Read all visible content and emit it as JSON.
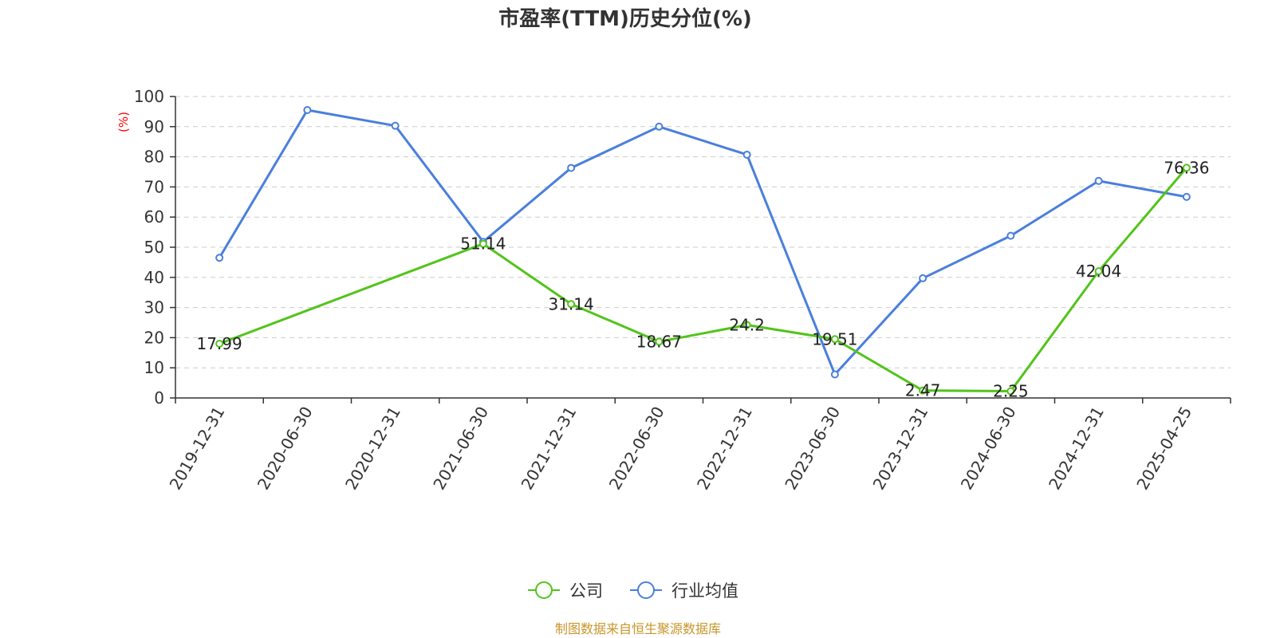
{
  "chart_data": {
    "type": "line",
    "title": "市盈率(TTM)历史分位(%)",
    "ylabel": "(%)",
    "ylim": [
      0,
      100
    ],
    "yticks": [
      0,
      10,
      20,
      30,
      40,
      50,
      60,
      70,
      80,
      90,
      100
    ],
    "grid": true,
    "legend_position": "bottom-center",
    "categories": [
      "2019-12-31",
      "2020-06-30",
      "2020-12-31",
      "2021-06-30",
      "2021-12-31",
      "2022-06-30",
      "2022-12-31",
      "2023-06-30",
      "2023-12-31",
      "2024-06-30",
      "2024-12-31",
      "2025-04-25"
    ],
    "series": [
      {
        "name": "公司",
        "color": "#52c41a",
        "values": [
          17.99,
          null,
          null,
          51.14,
          31.14,
          18.67,
          24.2,
          19.51,
          2.47,
          2.25,
          42.04,
          76.36
        ],
        "labels": [
          "17.99",
          null,
          null,
          "51.14",
          "31.14",
          "18.67",
          "24.2",
          "19.51",
          "2.47",
          "2.25",
          "42.04",
          "76.36"
        ]
      },
      {
        "name": "行业均值",
        "color": "#4a7fdc",
        "values": [
          46.5,
          95.5,
          90.3,
          51.8,
          76.3,
          90.0,
          80.7,
          7.8,
          39.7,
          53.8,
          72.0,
          66.7
        ]
      }
    ],
    "source": "制图数据来自恒生聚源数据库"
  }
}
